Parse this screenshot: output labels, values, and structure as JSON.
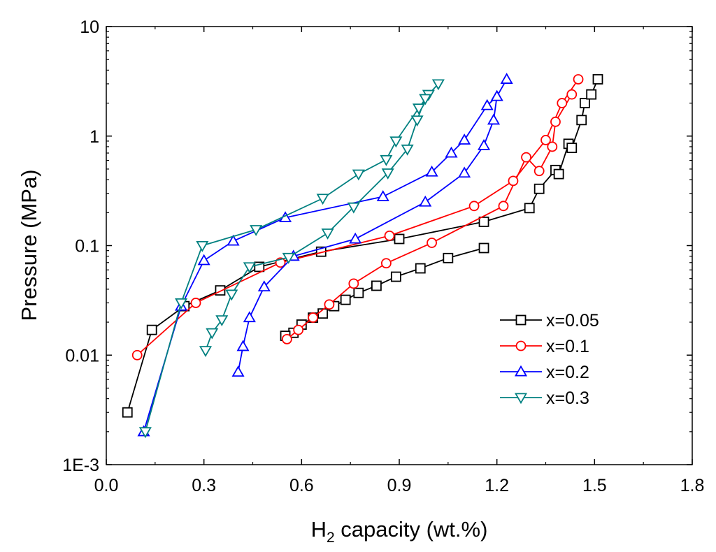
{
  "chart_data": {
    "type": "line",
    "title": "",
    "xlabel": {
      "main": "H",
      "sub": "2",
      "rest": " capacity (wt.%)"
    },
    "ylabel": "Pressure (MPa)",
    "xlim": [
      0.0,
      1.8
    ],
    "ylim": [
      0.001,
      10
    ],
    "yscale": "log",
    "x_ticks": [
      0.0,
      0.3,
      0.6,
      0.9,
      1.2,
      1.5,
      1.8
    ],
    "x_tick_labels": [
      "0.0",
      "0.3",
      "0.6",
      "0.9",
      "1.2",
      "1.5",
      "1.8"
    ],
    "y_ticks": [
      0.001,
      0.01,
      0.1,
      1,
      10
    ],
    "y_tick_labels": [
      "1E-3",
      "0.01",
      "0.1",
      "1",
      "10"
    ],
    "grid": false,
    "legend_position": "lower-right",
    "series": [
      {
        "name": "x=0.05",
        "color": "#000000",
        "marker": "square",
        "x": [
          0.065,
          0.14,
          0.24,
          0.35,
          0.47,
          0.66,
          0.9,
          1.16,
          1.3,
          1.33,
          1.38,
          1.39,
          1.42,
          1.43,
          1.46,
          1.47,
          1.49,
          1.51
        ],
        "y": [
          0.003,
          0.017,
          0.028,
          0.039,
          0.064,
          0.088,
          0.115,
          0.165,
          0.22,
          0.33,
          0.49,
          0.45,
          0.85,
          0.78,
          1.4,
          2.0,
          2.4,
          3.3
        ],
        "x2": [
          1.16,
          1.05,
          0.965,
          0.89,
          0.83,
          0.775,
          0.735,
          0.7,
          0.665,
          0.635,
          0.6,
          0.575,
          0.55
        ],
        "y2": [
          0.095,
          0.077,
          0.062,
          0.052,
          0.043,
          0.037,
          0.032,
          0.028,
          0.024,
          0.022,
          0.019,
          0.016,
          0.015
        ]
      },
      {
        "name": "x=0.1",
        "color": "#ff0000",
        "marker": "circle",
        "x": [
          0.095,
          0.275,
          0.535,
          0.87,
          1.13,
          1.25,
          1.35,
          1.4,
          1.45
        ],
        "y": [
          0.01,
          0.03,
          0.07,
          0.123,
          0.23,
          0.39,
          0.92,
          2.0,
          3.3
        ],
        "x2": [
          1.43,
          1.38,
          1.37,
          1.33,
          1.29,
          1.22,
          1.0,
          0.86,
          0.76,
          0.685,
          0.635,
          0.59,
          0.555
        ],
        "y2": [
          2.4,
          1.35,
          0.8,
          0.48,
          0.64,
          0.23,
          0.106,
          0.069,
          0.045,
          0.029,
          0.022,
          0.017,
          0.014
        ]
      },
      {
        "name": "x=0.2",
        "color": "#0000ff",
        "marker": "triangle-up",
        "x": [
          0.115,
          0.23,
          0.3,
          0.39,
          0.55,
          0.85,
          1.0,
          1.06,
          1.1,
          1.17,
          1.2,
          1.23
        ],
        "y": [
          0.002,
          0.028,
          0.073,
          0.11,
          0.18,
          0.28,
          0.47,
          0.7,
          0.92,
          1.9,
          2.3,
          3.3
        ],
        "x2": [
          1.2,
          1.19,
          1.16,
          1.1,
          0.98,
          0.765,
          0.575,
          0.485,
          0.44,
          0.42,
          0.405
        ],
        "y2": [
          2.3,
          1.4,
          0.82,
          0.46,
          0.25,
          0.115,
          0.08,
          0.042,
          0.022,
          0.012,
          0.007
        ]
      },
      {
        "name": "x=0.3",
        "color": "#008080",
        "marker": "triangle-down",
        "x": [
          0.12,
          0.23,
          0.295,
          0.46,
          0.665,
          0.775,
          0.86,
          0.89,
          0.96,
          0.99,
          1.02
        ],
        "y": [
          0.002,
          0.03,
          0.1,
          0.14,
          0.27,
          0.45,
          0.61,
          0.9,
          1.8,
          2.4,
          3.0
        ],
        "x2": [
          0.98,
          0.955,
          0.925,
          0.865,
          0.76,
          0.68,
          0.56,
          0.44,
          0.385,
          0.355,
          0.325,
          0.305
        ],
        "y2": [
          2.2,
          1.4,
          0.76,
          0.46,
          0.225,
          0.13,
          0.078,
          0.064,
          0.036,
          0.021,
          0.016,
          0.011
        ]
      }
    ]
  }
}
